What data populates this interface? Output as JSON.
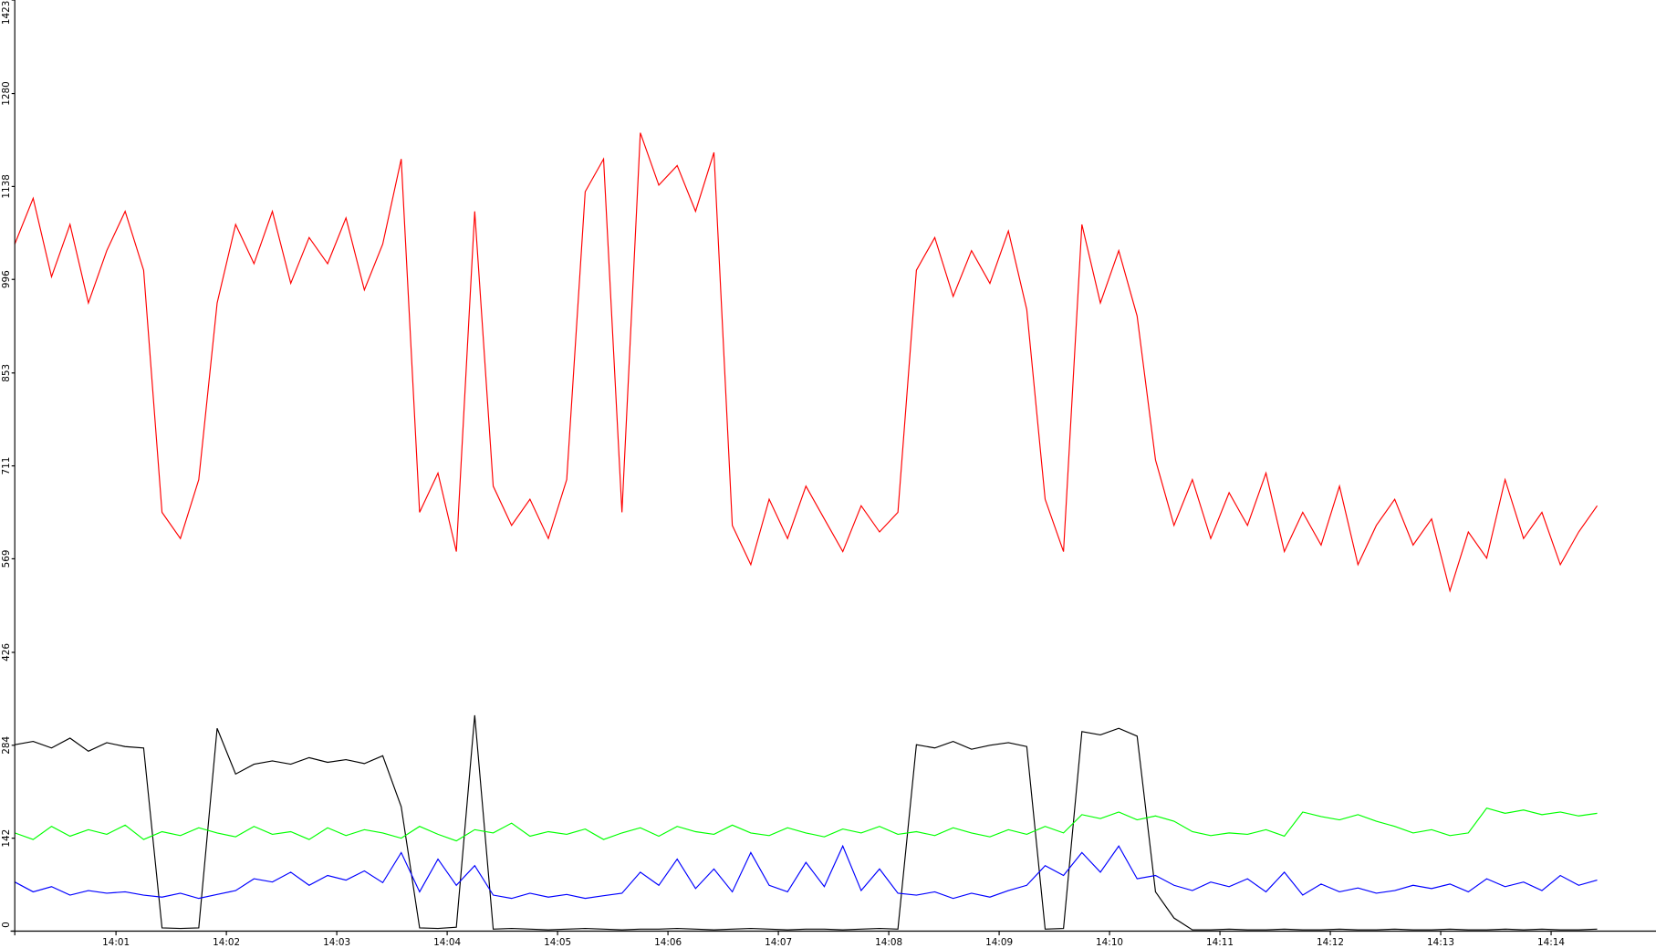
{
  "chart_data": {
    "type": "line",
    "x": [
      "14:00:05",
      "14:00:15",
      "14:00:25",
      "14:00:35",
      "14:00:45",
      "14:00:55",
      "14:01:05",
      "14:01:15",
      "14:01:25",
      "14:01:35",
      "14:01:45",
      "14:01:55",
      "14:02:05",
      "14:02:15",
      "14:02:25",
      "14:02:35",
      "14:02:45",
      "14:02:55",
      "14:03:05",
      "14:03:15",
      "14:03:25",
      "14:03:35",
      "14:03:45",
      "14:03:55",
      "14:04:05",
      "14:04:15",
      "14:04:25",
      "14:04:35",
      "14:04:45",
      "14:04:55",
      "14:05:05",
      "14:05:15",
      "14:05:25",
      "14:05:35",
      "14:05:45",
      "14:05:55",
      "14:06:05",
      "14:06:15",
      "14:06:25",
      "14:06:35",
      "14:06:45",
      "14:06:55",
      "14:07:05",
      "14:07:15",
      "14:07:25",
      "14:07:35",
      "14:07:45",
      "14:07:55",
      "14:08:05",
      "14:08:15",
      "14:08:25",
      "14:08:35",
      "14:08:45",
      "14:08:55",
      "14:09:05",
      "14:09:15",
      "14:09:25",
      "14:09:35",
      "14:09:45",
      "14:09:55",
      "14:10:05",
      "14:10:15",
      "14:10:25",
      "14:10:35",
      "14:10:45",
      "14:10:55",
      "14:11:05",
      "14:11:15",
      "14:11:25",
      "14:11:35",
      "14:11:45",
      "14:11:55",
      "14:12:05",
      "14:12:15",
      "14:12:25",
      "14:12:35",
      "14:12:45",
      "14:12:55",
      "14:13:05",
      "14:13:15",
      "14:13:25",
      "14:13:35",
      "14:13:45",
      "14:13:55",
      "14:14:05",
      "14:14:15",
      "14:14:25"
    ],
    "series": [
      {
        "color": "#ff0000",
        "values": [
          1050,
          1120,
          1000,
          1080,
          960,
          1040,
          1100,
          1010,
          640,
          600,
          690,
          960,
          1080,
          1020,
          1100,
          990,
          1060,
          1020,
          1090,
          980,
          1050,
          1180,
          640,
          700,
          580,
          1100,
          680,
          620,
          660,
          600,
          690,
          1130,
          1180,
          640,
          1220,
          1140,
          1170,
          1100,
          1190,
          620,
          560,
          660,
          600,
          680,
          630,
          580,
          650,
          610,
          640,
          1010,
          1060,
          970,
          1040,
          990,
          1070,
          950,
          660,
          580,
          1080,
          960,
          1040,
          940,
          720,
          620,
          690,
          600,
          670,
          620,
          700,
          580,
          640,
          590,
          680,
          560,
          620,
          660,
          590,
          630,
          520,
          610,
          570,
          690,
          600,
          640,
          560,
          610,
          650
        ]
      },
      {
        "color": "#000000",
        "values": [
          285,
          290,
          280,
          295,
          275,
          288,
          282,
          280,
          5,
          4,
          5,
          310,
          240,
          255,
          260,
          255,
          265,
          258,
          262,
          256,
          268,
          190,
          5,
          4,
          6,
          330,
          3,
          4,
          3,
          2,
          3,
          4,
          3,
          2,
          3,
          3,
          4,
          3,
          2,
          3,
          4,
          3,
          2,
          3,
          3,
          2,
          3,
          4,
          3,
          285,
          280,
          290,
          278,
          284,
          288,
          282,
          3,
          4,
          305,
          300,
          310,
          298,
          60,
          20,
          2,
          2,
          3,
          2,
          2,
          3,
          2,
          2,
          3,
          2,
          2,
          3,
          2,
          2,
          3,
          2,
          2,
          3,
          2,
          3,
          2,
          2,
          3
        ]
      },
      {
        "color": "#00ff00",
        "values": [
          150,
          140,
          160,
          145,
          155,
          148,
          162,
          140,
          152,
          146,
          158,
          150,
          144,
          160,
          148,
          152,
          140,
          158,
          146,
          155,
          150,
          142,
          160,
          148,
          138,
          155,
          150,
          165,
          145,
          152,
          148,
          156,
          140,
          150,
          158,
          145,
          160,
          152,
          148,
          162,
          150,
          146,
          158,
          150,
          144,
          156,
          150,
          160,
          148,
          152,
          146,
          158,
          150,
          144,
          155,
          148,
          160,
          150,
          178,
          172,
          182,
          170,
          176,
          168,
          152,
          146,
          150,
          148,
          155,
          145,
          182,
          175,
          170,
          178,
          168,
          160,
          150,
          155,
          146,
          150,
          188,
          180,
          185,
          178,
          182,
          176,
          180
        ]
      },
      {
        "color": "#0000ff",
        "values": [
          75,
          60,
          68,
          55,
          62,
          58,
          60,
          55,
          52,
          58,
          50,
          56,
          62,
          80,
          75,
          90,
          70,
          85,
          78,
          92,
          74,
          120,
          60,
          110,
          70,
          100,
          55,
          50,
          58,
          52,
          56,
          50,
          54,
          58,
          90,
          70,
          110,
          65,
          95,
          60,
          120,
          70,
          60,
          105,
          68,
          130,
          62,
          95,
          58,
          55,
          60,
          50,
          58,
          52,
          62,
          70,
          100,
          85,
          120,
          90,
          130,
          80,
          85,
          70,
          62,
          75,
          68,
          80,
          60,
          90,
          55,
          72,
          60,
          66,
          58,
          62,
          70,
          65,
          72,
          60,
          80,
          68,
          75,
          62,
          85,
          70,
          78
        ]
      }
    ],
    "xlim": [
      "14:00:05",
      "14:14:57"
    ],
    "xticks": [
      "14:01",
      "14:02",
      "14:03",
      "14:04",
      "14:05",
      "14:06",
      "14:07",
      "14:08",
      "14:09",
      "14:10",
      "14:11",
      "14:12",
      "14:13",
      "14:14"
    ],
    "ylim": [
      0,
      1423
    ],
    "yticks": [
      0,
      142,
      284,
      426,
      569,
      711,
      853,
      996,
      1138,
      1280,
      1423
    ]
  }
}
